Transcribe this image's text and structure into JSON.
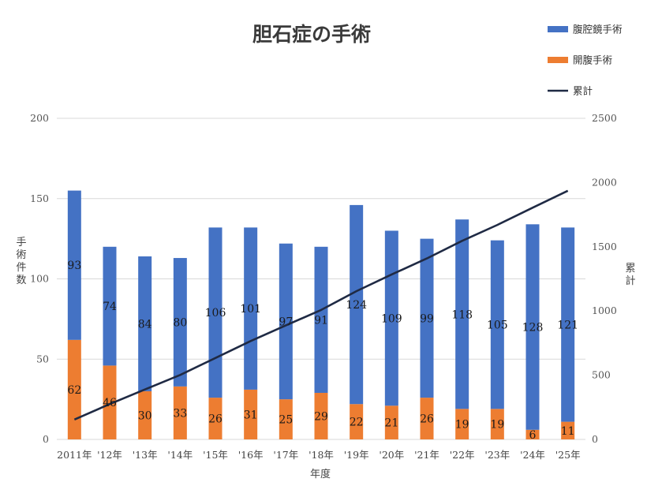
{
  "chart_data": {
    "type": "bar",
    "stacked": true,
    "title": "胆石症の手術",
    "xlabel": "年度",
    "ylabel": "手術件数",
    "y2label": "累計",
    "categories": [
      "2011年",
      "'12年",
      "'13年",
      "'14年",
      "'15年",
      "'16年",
      "'17年",
      "'18年",
      "'19年",
      "'20年",
      "'21年",
      "'22年",
      "'23年",
      "'24年",
      "'25年"
    ],
    "series": [
      {
        "name": "開腹手術",
        "type": "bar",
        "color": "#ed7d31",
        "values": [
          62,
          46,
          30,
          33,
          26,
          31,
          25,
          29,
          22,
          21,
          26,
          19,
          19,
          6,
          11
        ]
      },
      {
        "name": "腹腔鏡手術",
        "type": "bar",
        "color": "#4472c4",
        "values": [
          93,
          74,
          84,
          80,
          106,
          101,
          97,
          91,
          124,
          109,
          99,
          118,
          105,
          128,
          121
        ]
      },
      {
        "name": "累計",
        "type": "line",
        "axis": "right",
        "color": "#1f2a44",
        "values": [
          155,
          275,
          389,
          502,
          634,
          766,
          888,
          1008,
          1154,
          1284,
          1409,
          1546,
          1670,
          1804,
          1936
        ]
      }
    ],
    "ylim": [
      0,
      200
    ],
    "yticks": [
      "0",
      "50",
      "100",
      "150",
      "200"
    ],
    "y2lim": [
      0,
      2500
    ],
    "y2ticks": [
      "0",
      "500",
      "1000",
      "1500",
      "2000",
      "2500"
    ],
    "legend": {
      "position": "top-right",
      "order": [
        "腹腔鏡手術",
        "開腹手術",
        "累計"
      ]
    },
    "grid": true
  }
}
